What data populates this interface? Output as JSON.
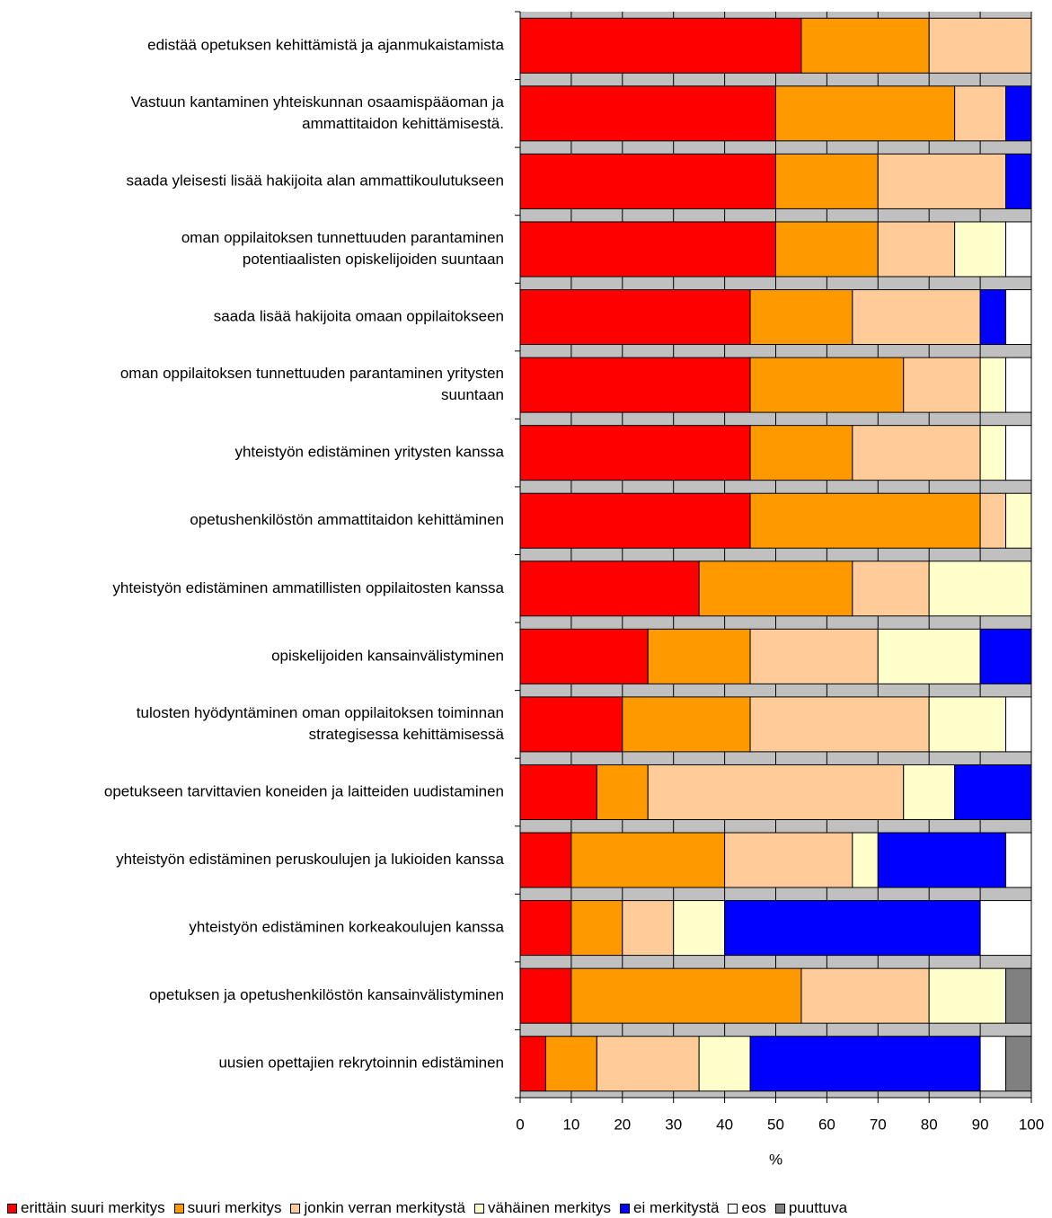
{
  "chart_data": {
    "type": "bar",
    "orientation": "horizontal",
    "stacked": true,
    "xlabel": "%",
    "xlim": [
      0,
      100
    ],
    "x_ticks": [
      "0",
      "10",
      "20",
      "30",
      "40",
      "50",
      "60",
      "70",
      "80",
      "90",
      "100"
    ],
    "categories": [
      [
        "edistää opetuksen kehittämistä ja ajanmukaistamista"
      ],
      [
        "Vastuun kantaminen yhteiskunnan osaamispääoman ja",
        "ammattitaidon kehittämisestä."
      ],
      [
        "saada yleisesti lisää hakijoita alan ammattikoulutukseen"
      ],
      [
        "oman oppilaitoksen tunnettuuden parantaminen",
        "potentiaalisten opiskelijoiden suuntaan"
      ],
      [
        "saada lisää hakijoita omaan oppilaitokseen"
      ],
      [
        "oman oppilaitoksen tunnettuuden parantaminen yritysten",
        "suuntaan"
      ],
      [
        "yhteistyön edistäminen yritysten kanssa"
      ],
      [
        "opetushenkilöstön ammattitaidon kehittäminen"
      ],
      [
        "yhteistyön edistäminen ammatillisten oppilaitosten kanssa"
      ],
      [
        "opiskelijoiden kansainvälistyminen"
      ],
      [
        "tulosten hyödyntäminen oman oppilaitoksen toiminnan",
        "strategisessa kehittämisessä"
      ],
      [
        "opetukseen tarvittavien koneiden ja laitteiden uudistaminen"
      ],
      [
        "yhteistyön edistäminen peruskoulujen ja lukioiden kanssa"
      ],
      [
        "yhteistyön edistäminen korkeakoulujen kanssa"
      ],
      [
        "opetuksen ja opetushenkilöstön kansainvälistyminen"
      ],
      [
        "uusien opettajien rekrytoinnin edistäminen"
      ]
    ],
    "series": [
      {
        "name": "erittäin suuri merkitys",
        "color": "#ff0000",
        "values": [
          55,
          50,
          50,
          50,
          45,
          45,
          45,
          45,
          35,
          25,
          20,
          15,
          10,
          10,
          10,
          5
        ]
      },
      {
        "name": "suuri merkitys",
        "color": "#ff9900",
        "values": [
          25,
          35,
          20,
          20,
          20,
          30,
          20,
          45,
          30,
          20,
          25,
          10,
          30,
          10,
          45,
          10
        ]
      },
      {
        "name": "jonkin verran merkitystä",
        "color": "#ffcc99",
        "values": [
          20,
          10,
          25,
          15,
          25,
          15,
          25,
          5,
          15,
          25,
          35,
          50,
          25,
          10,
          25,
          20
        ]
      },
      {
        "name": "vähäinen merkitys",
        "color": "#ffffcc",
        "values": [
          0,
          0,
          0,
          10,
          0,
          5,
          5,
          5,
          20,
          20,
          15,
          10,
          5,
          10,
          15,
          10
        ]
      },
      {
        "name": "ei merkitystä",
        "color": "#0000ff",
        "values": [
          0,
          5,
          5,
          0,
          5,
          0,
          0,
          0,
          0,
          10,
          0,
          15,
          25,
          50,
          0,
          45
        ]
      },
      {
        "name": "eos",
        "color": "#ffffff",
        "values": [
          0,
          0,
          0,
          5,
          5,
          5,
          5,
          0,
          0,
          0,
          5,
          0,
          5,
          10,
          0,
          5
        ]
      },
      {
        "name": "puuttuva",
        "color": "#808080",
        "values": [
          0,
          0,
          0,
          0,
          0,
          0,
          0,
          0,
          0,
          0,
          0,
          0,
          0,
          0,
          5,
          5
        ]
      }
    ],
    "grid": "vertical gridlines",
    "plot_background": "#c0c0c0",
    "legend": "bottom"
  }
}
